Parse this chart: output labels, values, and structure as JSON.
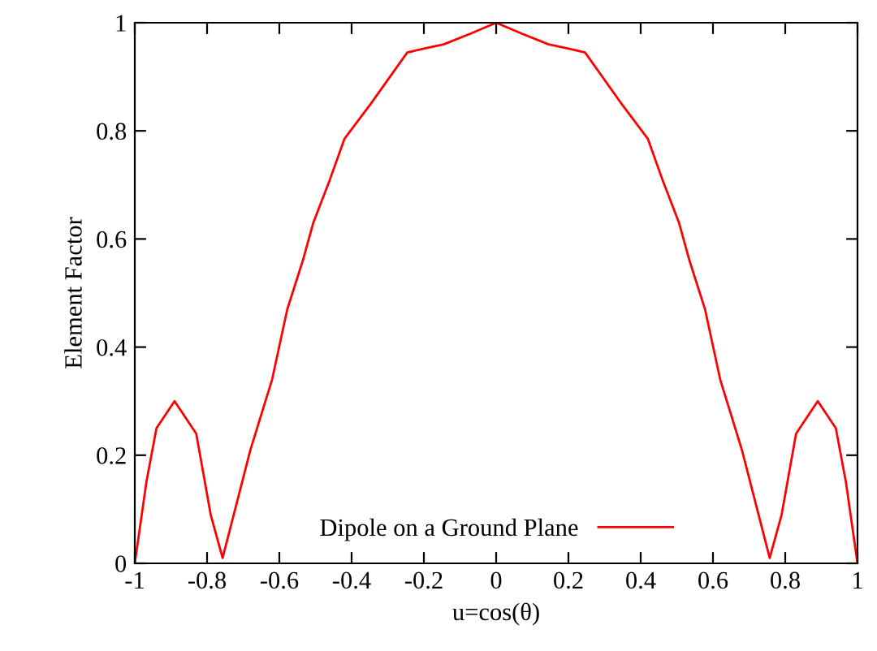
{
  "chart_data": {
    "type": "line",
    "xlabel": "u=cos(θ)",
    "ylabel": "Element Factor",
    "xlim": [
      -1,
      1
    ],
    "ylim": [
      0,
      1
    ],
    "xticks": [
      -1,
      -0.8,
      -0.6,
      -0.4,
      -0.2,
      0,
      0.2,
      0.4,
      0.6,
      0.8,
      1
    ],
    "yticks": [
      0,
      0.2,
      0.4,
      0.6,
      0.8,
      1
    ],
    "grid": false,
    "legend": "bottom",
    "line_style": "solid",
    "marker": "none",
    "series": [
      {
        "name": "Dipole on a Ground Plane",
        "color": "#ff0000",
        "x": [
          -1,
          -0.968,
          -0.94,
          -0.89,
          -0.83,
          -0.79,
          -0.757,
          -0.68,
          -0.62,
          -0.578,
          -0.535,
          -0.506,
          -0.46,
          -0.42,
          -0.347,
          -0.246,
          -0.2,
          -0.145,
          -0.07,
          0,
          0.07,
          0.145,
          0.2,
          0.246,
          0.347,
          0.42,
          0.46,
          0.506,
          0.535,
          0.578,
          0.62,
          0.68,
          0.757,
          0.79,
          0.83,
          0.89,
          0.94,
          0.968,
          1
        ],
        "values": [
          0,
          0.15,
          0.25,
          0.3,
          0.24,
          0.09,
          0.01,
          0.21,
          0.34,
          0.47,
          0.56,
          0.63,
          0.71,
          0.785,
          0.85,
          0.945,
          0.952,
          0.96,
          0.98,
          1,
          0.98,
          0.96,
          0.952,
          0.945,
          0.85,
          0.785,
          0.71,
          0.63,
          0.56,
          0.47,
          0.34,
          0.21,
          0.01,
          0.09,
          0.24,
          0.3,
          0.25,
          0.15,
          0
        ]
      }
    ]
  }
}
